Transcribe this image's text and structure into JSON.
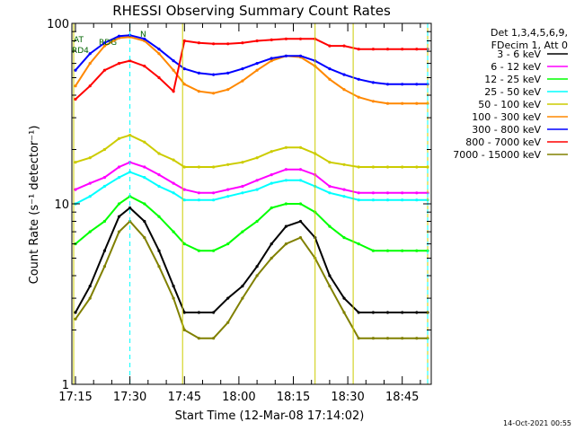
{
  "chart_data": {
    "type": "line",
    "title": "RHESSI Observing Summary Count Rates",
    "xlabel": "Start Time (12-Mar-08 17:14:02)",
    "ylabel": "Count Rate (s⁻¹ detector⁻¹)",
    "yscale": "log",
    "ylim": [
      1,
      100
    ],
    "xlim": [
      "17:14",
      "18:53"
    ],
    "x_ticks": [
      "17:15",
      "17:30",
      "17:45",
      "18:00",
      "18:15",
      "18:30",
      "18:45"
    ],
    "y_ticks": [
      {
        "value": 1,
        "label": "1"
      },
      {
        "value": 10,
        "label": "10"
      },
      {
        "value": 100,
        "label": "100"
      }
    ],
    "legend_header": [
      "Det 1,3,4,5,6,9,",
      "FDecim 1, Att 0"
    ],
    "legend_placement": "right",
    "grid": false,
    "timestamp": "14-Oct-2021 00:55",
    "annotations": {
      "flag_labels": [
        "AT",
        "RDG",
        "N",
        "RD4"
      ],
      "day_night_markers": [
        "17:14.5",
        "17:44.5",
        "18:21",
        "18:31.5",
        "18:52"
      ],
      "saa_markers": [
        "17:30",
        "18:52"
      ]
    },
    "x": [
      "17:15",
      "17:19",
      "17:23",
      "17:27",
      "17:30",
      "17:34",
      "17:38",
      "17:42",
      "17:45",
      "17:49",
      "17:53",
      "17:57",
      "18:01",
      "18:05",
      "18:09",
      "18:13",
      "18:17",
      "18:21",
      "18:25",
      "18:29",
      "18:33",
      "18:37",
      "18:41",
      "18:45",
      "18:49",
      "18:52"
    ],
    "series": [
      {
        "name": "3 - 6 keV",
        "color": "#000000",
        "values": [
          2.5,
          3.5,
          5.5,
          8.5,
          9.5,
          8.0,
          5.5,
          3.5,
          2.5,
          2.5,
          2.5,
          3.0,
          3.5,
          4.5,
          6.0,
          7.5,
          8.0,
          6.5,
          4.0,
          3.0,
          2.5,
          2.5,
          2.5,
          2.5,
          2.5,
          2.5
        ]
      },
      {
        "name": "6 - 12 keV",
        "color": "#ff00ff",
        "values": [
          12,
          13,
          14,
          16,
          17,
          16,
          14.5,
          13,
          12,
          11.5,
          11.5,
          12,
          12.5,
          13.5,
          14.5,
          15.5,
          15.5,
          14.5,
          12.5,
          12,
          11.5,
          11.5,
          11.5,
          11.5,
          11.5,
          11.5
        ]
      },
      {
        "name": "12 - 25 keV",
        "color": "#00ff00",
        "values": [
          6,
          7,
          8,
          10,
          11,
          10,
          8.5,
          7,
          6,
          5.5,
          5.5,
          6,
          7,
          8,
          9.5,
          10,
          10,
          9,
          7.5,
          6.5,
          6,
          5.5,
          5.5,
          5.5,
          5.5,
          5.5
        ]
      },
      {
        "name": "25 - 50 keV",
        "color": "#00ffff",
        "values": [
          10,
          11,
          12.5,
          14,
          15,
          14,
          12.5,
          11.5,
          10.5,
          10.5,
          10.5,
          11,
          11.5,
          12,
          13,
          13.5,
          13.5,
          12.5,
          11.5,
          11,
          10.5,
          10.5,
          10.5,
          10.5,
          10.5,
          10.5
        ]
      },
      {
        "name": "50 - 100 keV",
        "color": "#cccc00",
        "values": [
          17,
          18,
          20,
          23,
          24,
          22,
          19,
          17.5,
          16,
          16,
          16,
          16.5,
          17,
          18,
          19.5,
          20.5,
          20.5,
          19,
          17,
          16.5,
          16,
          16,
          16,
          16,
          16,
          16
        ]
      },
      {
        "name": "100 - 300 keV",
        "color": "#ff8800",
        "values": [
          45,
          60,
          75,
          83,
          84,
          80,
          68,
          55,
          46,
          42,
          41,
          43,
          48,
          55,
          62,
          66,
          65,
          58,
          49,
          43,
          39,
          37,
          36,
          36,
          36,
          36
        ]
      },
      {
        "name": "300 - 800 keV",
        "color": "#0000ff",
        "values": [
          55,
          68,
          78,
          85,
          86,
          82,
          72,
          62,
          56,
          53,
          52,
          53,
          56,
          60,
          64,
          66,
          66,
          62,
          56,
          52,
          49,
          47,
          46,
          46,
          46,
          46
        ]
      },
      {
        "name": "800 - 7000 keV",
        "color": "#ff0000",
        "values": [
          38,
          45,
          55,
          60,
          62,
          58,
          50,
          42,
          80,
          78,
          77,
          77,
          78,
          80,
          81,
          82,
          82,
          82,
          75,
          75,
          72,
          72,
          72,
          72,
          72,
          72
        ]
      },
      {
        "name": "7000 - 15000 keV",
        "color": "#808000",
        "values": [
          2.3,
          3.0,
          4.5,
          7.0,
          8.0,
          6.5,
          4.5,
          3.0,
          2.0,
          1.8,
          1.8,
          2.2,
          3.0,
          4.0,
          5.0,
          6.0,
          6.5,
          5.0,
          3.5,
          2.5,
          1.8,
          1.8,
          1.8,
          1.8,
          1.8,
          1.8
        ]
      }
    ]
  }
}
